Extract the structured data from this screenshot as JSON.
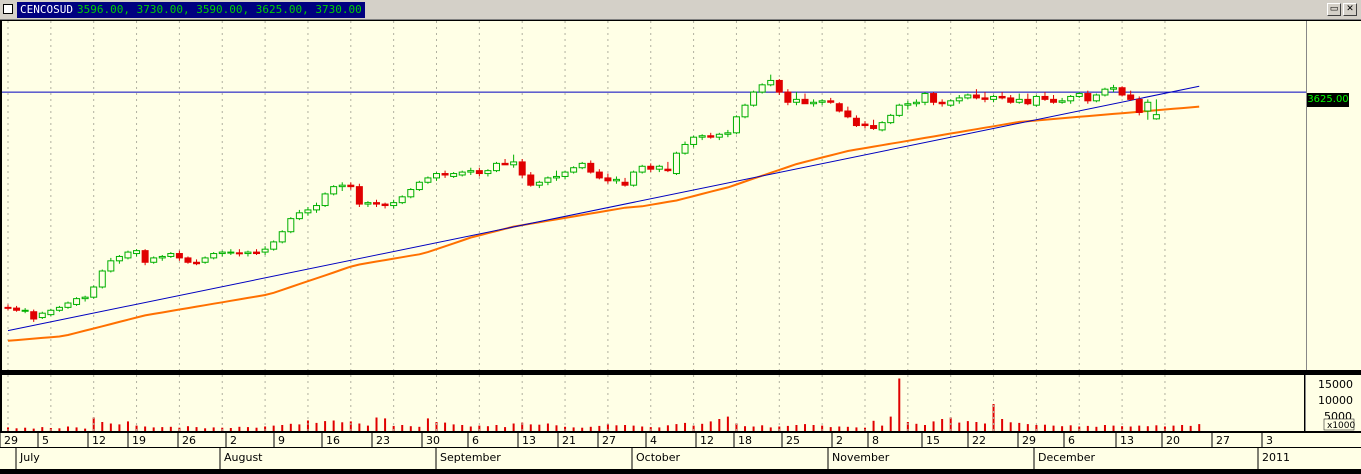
{
  "window": {
    "symbol": "CENCOSUD",
    "quote": "3596.00, 3730.00, 3590.00, 3625.00, 3730.00",
    "restore_glyph": "▭",
    "close_glyph": "✕"
  },
  "price_axis": {
    "current_price": "3625.00"
  },
  "volume_axis": {
    "ticks": [
      "15000",
      "10000",
      "5000"
    ],
    "multiplier": "x1000"
  },
  "time_axis": {
    "days": [
      "29",
      "5",
      "12",
      "19",
      "26",
      "2",
      "9",
      "16",
      "23",
      "30",
      "6",
      "13",
      "21",
      "27",
      "4",
      "12",
      "18",
      "25",
      "2",
      "8",
      "15",
      "22",
      "29",
      "6",
      "13",
      "20",
      "27",
      "3"
    ],
    "months": [
      "July",
      "August",
      "September",
      "October",
      "November",
      "December",
      "2011"
    ]
  },
  "chart_data": {
    "type": "candlestick",
    "symbol": "CENCOSUD",
    "last_close": 3625.0,
    "yrange": [
      2000,
      4200
    ],
    "horizontal_line": 3780,
    "trendline": {
      "start": {
        "i": 0,
        "price": 2140
      },
      "end": {
        "i": 139,
        "price": 3820
      }
    },
    "colors": {
      "up": "#00b000",
      "down": "#e00000",
      "ma": "#ff7000",
      "trendline": "#0000c0",
      "hline": "#0000c0",
      "volume": "#e00000",
      "grid": "#b0b0a0"
    },
    "candles": [
      [
        2300,
        2320,
        2280,
        2295
      ],
      [
        2295,
        2310,
        2270,
        2280
      ],
      [
        2280,
        2295,
        2260,
        2280
      ],
      [
        2270,
        2285,
        2200,
        2220
      ],
      [
        2230,
        2270,
        2220,
        2260
      ],
      [
        2250,
        2290,
        2240,
        2280
      ],
      [
        2280,
        2310,
        2270,
        2300
      ],
      [
        2300,
        2340,
        2290,
        2330
      ],
      [
        2320,
        2370,
        2310,
        2360
      ],
      [
        2360,
        2380,
        2340,
        2370
      ],
      [
        2370,
        2450,
        2360,
        2440
      ],
      [
        2440,
        2560,
        2430,
        2550
      ],
      [
        2550,
        2640,
        2540,
        2620
      ],
      [
        2620,
        2660,
        2600,
        2650
      ],
      [
        2640,
        2690,
        2630,
        2680
      ],
      [
        2670,
        2700,
        2650,
        2690
      ],
      [
        2690,
        2700,
        2590,
        2610
      ],
      [
        2610,
        2650,
        2600,
        2640
      ],
      [
        2640,
        2660,
        2620,
        2650
      ],
      [
        2650,
        2680,
        2640,
        2670
      ],
      [
        2670,
        2690,
        2620,
        2640
      ],
      [
        2640,
        2650,
        2600,
        2610
      ],
      [
        2610,
        2630,
        2590,
        2600
      ],
      [
        2610,
        2650,
        2600,
        2640
      ],
      [
        2640,
        2680,
        2630,
        2670
      ],
      [
        2670,
        2690,
        2650,
        2680
      ],
      [
        2680,
        2700,
        2660,
        2680
      ],
      [
        2675,
        2700,
        2650,
        2670
      ],
      [
        2670,
        2690,
        2650,
        2680
      ],
      [
        2680,
        2700,
        2660,
        2670
      ],
      [
        2680,
        2720,
        2660,
        2700
      ],
      [
        2700,
        2760,
        2690,
        2750
      ],
      [
        2750,
        2830,
        2740,
        2820
      ],
      [
        2820,
        2920,
        2810,
        2910
      ],
      [
        2910,
        2970,
        2900,
        2950
      ],
      [
        2950,
        2990,
        2930,
        2970
      ],
      [
        2970,
        3020,
        2950,
        3000
      ],
      [
        3000,
        3090,
        2990,
        3080
      ],
      [
        3080,
        3140,
        3070,
        3130
      ],
      [
        3130,
        3160,
        3100,
        3140
      ],
      [
        3140,
        3160,
        3110,
        3130
      ],
      [
        3130,
        3150,
        2990,
        3010
      ],
      [
        3010,
        3030,
        2990,
        3020
      ],
      [
        3020,
        3040,
        2990,
        3010
      ],
      [
        3010,
        3020,
        2980,
        3000
      ],
      [
        3000,
        3040,
        2980,
        3020
      ],
      [
        3020,
        3070,
        3010,
        3060
      ],
      [
        3060,
        3120,
        3050,
        3110
      ],
      [
        3110,
        3170,
        3100,
        3160
      ],
      [
        3160,
        3200,
        3150,
        3190
      ],
      [
        3190,
        3230,
        3170,
        3220
      ],
      [
        3220,
        3240,
        3190,
        3210
      ],
      [
        3200,
        3230,
        3190,
        3220
      ],
      [
        3210,
        3240,
        3200,
        3230
      ],
      [
        3230,
        3260,
        3210,
        3240
      ],
      [
        3240,
        3260,
        3200,
        3220
      ],
      [
        3220,
        3250,
        3200,
        3240
      ],
      [
        3240,
        3300,
        3230,
        3290
      ],
      [
        3290,
        3320,
        3280,
        3280
      ],
      [
        3280,
        3350,
        3260,
        3300
      ],
      [
        3300,
        3320,
        3190,
        3210
      ],
      [
        3210,
        3230,
        3130,
        3140
      ],
      [
        3140,
        3170,
        3120,
        3160
      ],
      [
        3160,
        3200,
        3140,
        3190
      ],
      [
        3190,
        3240,
        3170,
        3200
      ],
      [
        3200,
        3240,
        3180,
        3230
      ],
      [
        3230,
        3270,
        3220,
        3260
      ],
      [
        3260,
        3300,
        3250,
        3290
      ],
      [
        3290,
        3310,
        3220,
        3230
      ],
      [
        3230,
        3250,
        3180,
        3190
      ],
      [
        3190,
        3220,
        3150,
        3170
      ],
      [
        3170,
        3200,
        3150,
        3180
      ],
      [
        3160,
        3190,
        3130,
        3140
      ],
      [
        3140,
        3240,
        3130,
        3230
      ],
      [
        3230,
        3280,
        3220,
        3270
      ],
      [
        3270,
        3290,
        3230,
        3250
      ],
      [
        3250,
        3280,
        3230,
        3270
      ],
      [
        3250,
        3300,
        3230,
        3240
      ],
      [
        3220,
        3370,
        3210,
        3360
      ],
      [
        3360,
        3440,
        3350,
        3420
      ],
      [
        3420,
        3480,
        3400,
        3470
      ],
      [
        3470,
        3490,
        3450,
        3480
      ],
      [
        3480,
        3500,
        3460,
        3470
      ],
      [
        3470,
        3500,
        3450,
        3490
      ],
      [
        3490,
        3520,
        3470,
        3500
      ],
      [
        3500,
        3620,
        3490,
        3610
      ],
      [
        3610,
        3700,
        3600,
        3690
      ],
      [
        3690,
        3790,
        3680,
        3780
      ],
      [
        3780,
        3840,
        3770,
        3830
      ],
      [
        3830,
        3900,
        3820,
        3860
      ],
      [
        3860,
        3870,
        3760,
        3780
      ],
      [
        3780,
        3800,
        3690,
        3710
      ],
      [
        3710,
        3780,
        3690,
        3730
      ],
      [
        3730,
        3770,
        3700,
        3700
      ],
      [
        3700,
        3730,
        3680,
        3710
      ],
      [
        3710,
        3730,
        3690,
        3720
      ],
      [
        3720,
        3740,
        3700,
        3710
      ],
      [
        3700,
        3710,
        3640,
        3650
      ],
      [
        3650,
        3680,
        3600,
        3610
      ],
      [
        3600,
        3620,
        3540,
        3550
      ],
      [
        3560,
        3580,
        3530,
        3550
      ],
      [
        3550,
        3590,
        3520,
        3530
      ],
      [
        3520,
        3580,
        3510,
        3570
      ],
      [
        3570,
        3630,
        3560,
        3620
      ],
      [
        3620,
        3700,
        3610,
        3690
      ],
      [
        3690,
        3720,
        3660,
        3700
      ],
      [
        3700,
        3730,
        3680,
        3710
      ],
      [
        3710,
        3780,
        3690,
        3770
      ],
      [
        3770,
        3780,
        3690,
        3710
      ],
      [
        3710,
        3730,
        3680,
        3700
      ],
      [
        3690,
        3730,
        3680,
        3720
      ],
      [
        3720,
        3760,
        3700,
        3740
      ],
      [
        3740,
        3770,
        3730,
        3760
      ],
      [
        3760,
        3800,
        3730,
        3740
      ],
      [
        3740,
        3780,
        3710,
        3730
      ],
      [
        3730,
        3760,
        3710,
        3750
      ],
      [
        3750,
        3780,
        3730,
        3740
      ],
      [
        3740,
        3760,
        3700,
        3710
      ],
      [
        3710,
        3770,
        3700,
        3730
      ],
      [
        3730,
        3770,
        3690,
        3700
      ],
      [
        3690,
        3760,
        3680,
        3750
      ],
      [
        3750,
        3780,
        3720,
        3730
      ],
      [
        3730,
        3760,
        3700,
        3710
      ],
      [
        3710,
        3740,
        3700,
        3720
      ],
      [
        3720,
        3760,
        3700,
        3750
      ],
      [
        3750,
        3780,
        3740,
        3770
      ],
      [
        3770,
        3790,
        3700,
        3720
      ],
      [
        3720,
        3770,
        3710,
        3760
      ],
      [
        3760,
        3810,
        3750,
        3800
      ],
      [
        3800,
        3830,
        3780,
        3810
      ],
      [
        3810,
        3820,
        3750,
        3760
      ],
      [
        3760,
        3790,
        3720,
        3730
      ],
      [
        3730,
        3750,
        3620,
        3640
      ],
      [
        3650,
        3730,
        3590,
        3710
      ],
      [
        3596,
        3730,
        3590,
        3625
      ]
    ],
    "ma": [
      2070,
      2075,
      2080,
      2085,
      2090,
      2095,
      2100,
      2110,
      2125,
      2140,
      2155,
      2170,
      2185,
      2200,
      2215,
      2230,
      2245,
      2255,
      2265,
      2275,
      2285,
      2295,
      2305,
      2315,
      2325,
      2335,
      2345,
      2355,
      2365,
      2375,
      2385,
      2400,
      2420,
      2440,
      2460,
      2480,
      2500,
      2520,
      2540,
      2560,
      2580,
      2595,
      2605,
      2615,
      2625,
      2635,
      2645,
      2655,
      2665,
      2680,
      2700,
      2720,
      2740,
      2760,
      2780,
      2795,
      2810,
      2825,
      2840,
      2855,
      2865,
      2875,
      2885,
      2895,
      2905,
      2915,
      2925,
      2935,
      2945,
      2955,
      2965,
      2975,
      2985,
      2990,
      2995,
      3005,
      3015,
      3025,
      3035,
      3050,
      3065,
      3080,
      3095,
      3110,
      3125,
      3145,
      3165,
      3185,
      3205,
      3225,
      3245,
      3265,
      3285,
      3300,
      3315,
      3330,
      3345,
      3360,
      3375,
      3385,
      3395,
      3405,
      3415,
      3425,
      3435,
      3445,
      3455,
      3465,
      3475,
      3485,
      3495,
      3505,
      3515,
      3525,
      3535,
      3545,
      3555,
      3565,
      3575,
      3580,
      3585,
      3590,
      3595,
      3600,
      3605,
      3610,
      3615,
      3620,
      3625,
      3630,
      3635,
      3640,
      3645,
      3650,
      3655,
      3660,
      3665,
      3670,
      3675,
      3680
    ],
    "volume": [
      1200,
      900,
      1100,
      800,
      1300,
      1000,
      900,
      1500,
      1200,
      800,
      4500,
      3000,
      2500,
      2200,
      3200,
      1800,
      1500,
      1200,
      1300,
      1400,
      1100,
      1600,
      1300,
      900,
      1200,
      1100,
      1000,
      1400,
      1300,
      1100,
      1500,
      1800,
      2000,
      2400,
      2200,
      3500,
      2700,
      3300,
      3500,
      2900,
      3200,
      2500,
      1800,
      4500,
      4200,
      1700,
      2000,
      1600,
      1400,
      4200,
      3000,
      2800,
      2200,
      2000,
      1500,
      1800,
      1600,
      2000,
      1300,
      2500,
      2800,
      2200,
      2100,
      2500,
      1900,
      1400,
      1200,
      1100,
      1400,
      1700,
      2300,
      1900,
      2000,
      1800,
      1500,
      1300,
      1200,
      1900,
      2300,
      2700,
      1800,
      2400,
      3200,
      4000,
      4800,
      2500,
      1600,
      1500,
      1900,
      1200,
      1500,
      1700,
      2000,
      2300,
      2000,
      1800,
      1300,
      1500,
      1400,
      1200,
      1100,
      3400,
      1800,
      4800,
      17500,
      3000,
      2400,
      2000,
      3200,
      4000,
      4500,
      2800,
      3300,
      3000,
      2500,
      9000,
      4000,
      2900,
      2700,
      2300,
      2000,
      2100,
      1800,
      1600,
      1900,
      1500,
      1700,
      1400,
      2000,
      1800,
      1600,
      1500,
      1800,
      1600,
      1900,
      1500,
      1800,
      2000,
      1700,
      2300
    ]
  }
}
